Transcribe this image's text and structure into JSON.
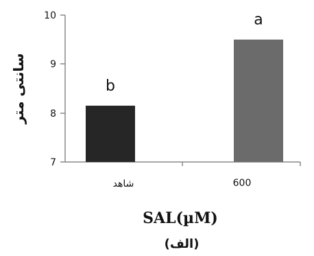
{
  "chart_data": {
    "type": "bar",
    "categories": [
      "شاهد",
      "600"
    ],
    "values": [
      8.15,
      9.5
    ],
    "bar_letters": [
      "b",
      "a"
    ],
    "bar_colors": [
      "#262626",
      "#6b6b6b"
    ],
    "ylim": [
      7,
      10
    ],
    "yticks": [
      "10",
      "9",
      "8",
      "7"
    ],
    "ylabel": "سانتی متر",
    "xlabel": "SAL(µM)",
    "caption": "(الف)",
    "grid": false
  }
}
